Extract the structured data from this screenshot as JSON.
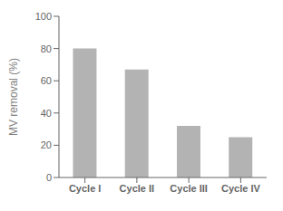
{
  "chart_data": {
    "type": "bar",
    "categories": [
      "Cycle I",
      "Cycle II",
      "Cycle III",
      "Cycle IV"
    ],
    "values": [
      80.0,
      67.0,
      32.0,
      25.0
    ],
    "color": "#b3b3b3",
    "ylabel": "MV removal (%)",
    "ylim": [
      0,
      100
    ],
    "yticks": [
      0,
      20,
      40,
      60,
      80,
      100
    ],
    "grid": false
  }
}
